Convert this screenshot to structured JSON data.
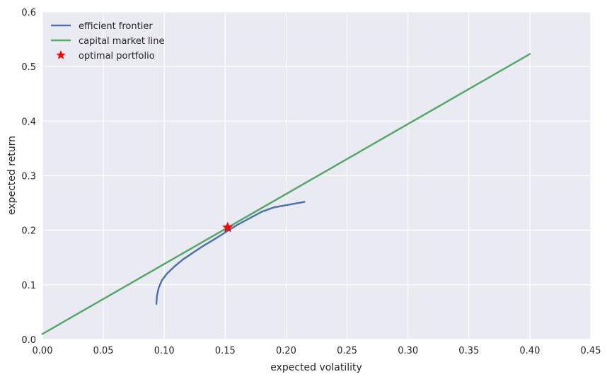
{
  "chart_data": {
    "type": "line",
    "title": "",
    "xlabel": "expected volatility",
    "ylabel": "expected return",
    "xlim": [
      0.0,
      0.45
    ],
    "ylim": [
      0.0,
      0.6
    ],
    "xticks": [
      0.0,
      0.05,
      0.1,
      0.15,
      0.2,
      0.25,
      0.3,
      0.35,
      0.4,
      0.45
    ],
    "xtick_labels": [
      "0.00",
      "0.05",
      "0.10",
      "0.15",
      "0.20",
      "0.25",
      "0.30",
      "0.35",
      "0.40",
      "0.45"
    ],
    "yticks": [
      0.0,
      0.1,
      0.2,
      0.3,
      0.4,
      0.5,
      0.6
    ],
    "ytick_labels": [
      "0.0",
      "0.1",
      "0.2",
      "0.3",
      "0.4",
      "0.5",
      "0.6"
    ],
    "grid": true,
    "background": "#eaeaf2",
    "legend_position": "top-left",
    "series": [
      {
        "name": "efficient frontier",
        "kind": "line",
        "color": "#4c72b0",
        "x": [
          0.0935,
          0.094,
          0.0955,
          0.098,
          0.102,
          0.108,
          0.115,
          0.123,
          0.131,
          0.14,
          0.15,
          0.16,
          0.17,
          0.18,
          0.19,
          0.2,
          0.215
        ],
        "y": [
          0.065,
          0.08,
          0.095,
          0.108,
          0.12,
          0.133,
          0.146,
          0.158,
          0.17,
          0.182,
          0.196,
          0.21,
          0.222,
          0.234,
          0.242,
          0.246,
          0.252
        ]
      },
      {
        "name": "capital market line",
        "kind": "line",
        "color": "#55a868",
        "x": [
          0.0,
          0.4
        ],
        "y": [
          0.01,
          0.523
        ]
      },
      {
        "name": "optimal portfolio",
        "kind": "marker",
        "marker": "star",
        "color": "#ff0000",
        "x": [
          0.152
        ],
        "y": [
          0.205
        ]
      }
    ]
  }
}
